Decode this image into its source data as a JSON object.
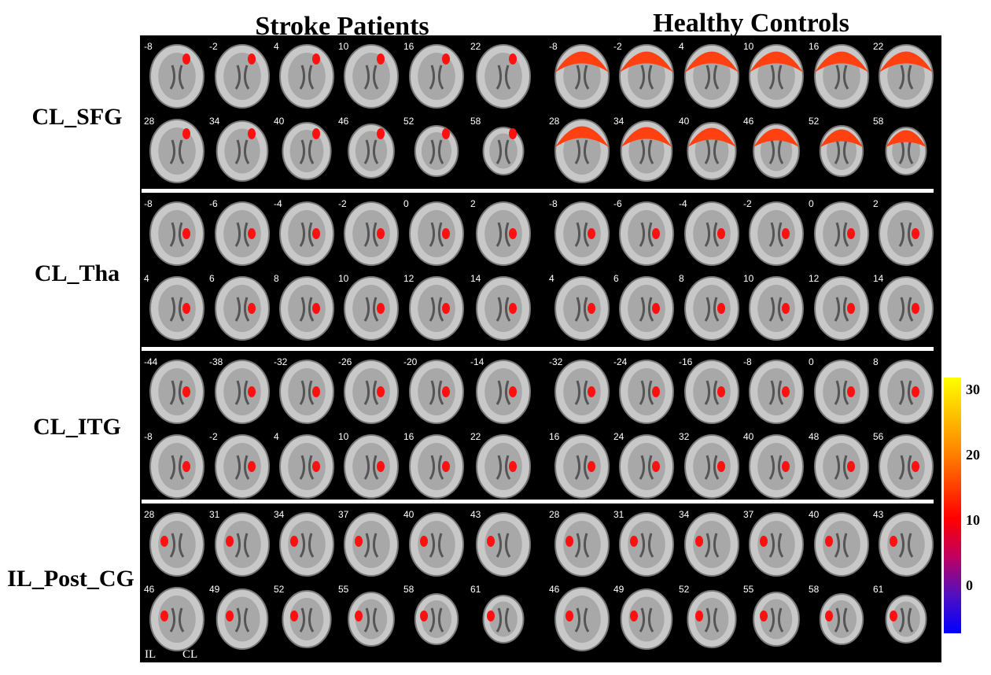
{
  "headers": {
    "left": "Stroke Patients",
    "right": "Healthy Controls"
  },
  "rows": [
    {
      "label": "CL_SFG",
      "stroke_slices": [
        "-8",
        "-2",
        "4",
        "10",
        "16",
        "22",
        "28",
        "34",
        "40",
        "46",
        "52",
        "58"
      ],
      "control_slices": [
        "-8",
        "-2",
        "4",
        "10",
        "16",
        "22",
        "28",
        "34",
        "40",
        "46",
        "52",
        "58"
      ]
    },
    {
      "label": "CL_Tha",
      "stroke_slices": [
        "-8",
        "-6",
        "-4",
        "-2",
        "0",
        "2",
        "4",
        "6",
        "8",
        "10",
        "12",
        "14"
      ],
      "control_slices": [
        "-8",
        "-6",
        "-4",
        "-2",
        "0",
        "2",
        "4",
        "6",
        "8",
        "10",
        "12",
        "14"
      ]
    },
    {
      "label": "CL_ITG",
      "stroke_slices": [
        "-44",
        "-38",
        "-32",
        "-26",
        "-20",
        "-14",
        "-8",
        "-2",
        "4",
        "10",
        "16",
        "22"
      ],
      "control_slices": [
        "-32",
        "-24",
        "-16",
        "-8",
        "0",
        "8",
        "16",
        "24",
        "32",
        "40",
        "48",
        "56"
      ]
    },
    {
      "label": "IL_Post_CG",
      "stroke_slices": [
        "28",
        "31",
        "34",
        "37",
        "40",
        "43",
        "46",
        "49",
        "52",
        "55",
        "58",
        "61"
      ],
      "control_slices": [
        "28",
        "31",
        "34",
        "37",
        "40",
        "43",
        "46",
        "49",
        "52",
        "55",
        "58",
        "61"
      ]
    }
  ],
  "colorbar": {
    "labels": [
      "30",
      "20",
      "10",
      "0"
    ]
  },
  "orientation": {
    "left": "IL",
    "right": "CL"
  }
}
